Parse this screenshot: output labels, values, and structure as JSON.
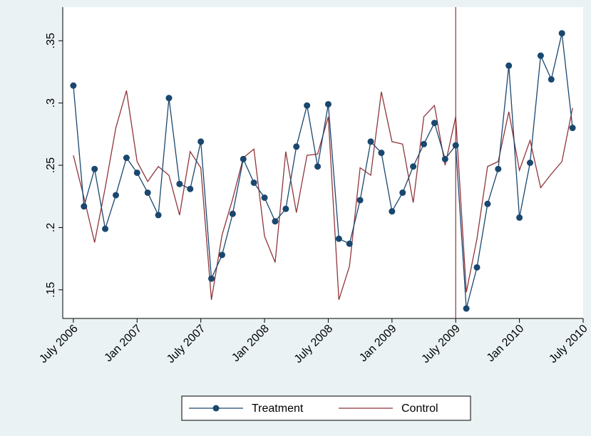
{
  "chart_data": {
    "type": "line",
    "x": [
      "2006-07",
      "2006-08",
      "2006-09",
      "2006-10",
      "2006-11",
      "2006-12",
      "2007-01",
      "2007-02",
      "2007-03",
      "2007-04",
      "2007-05",
      "2007-06",
      "2007-07",
      "2007-08",
      "2007-09",
      "2007-10",
      "2007-11",
      "2007-12",
      "2008-01",
      "2008-02",
      "2008-03",
      "2008-04",
      "2008-05",
      "2008-06",
      "2008-07",
      "2008-08",
      "2008-09",
      "2008-10",
      "2008-11",
      "2008-12",
      "2009-01",
      "2009-02",
      "2009-03",
      "2009-04",
      "2009-05",
      "2009-06",
      "2009-07",
      "2009-08",
      "2009-09",
      "2009-10",
      "2009-11",
      "2009-12",
      "2010-01",
      "2010-02",
      "2010-03",
      "2010-04",
      "2010-05",
      "2010-06"
    ],
    "series": [
      {
        "name": "Treatment",
        "color": "#1a476f",
        "marker": "circle",
        "values": [
          0.314,
          0.217,
          0.247,
          0.199,
          0.226,
          0.256,
          0.244,
          0.228,
          0.21,
          0.304,
          0.235,
          0.231,
          0.269,
          0.159,
          0.178,
          0.211,
          0.255,
          0.236,
          0.224,
          0.205,
          0.215,
          0.265,
          0.298,
          0.249,
          0.299,
          0.191,
          0.187,
          0.222,
          0.269,
          0.26,
          0.213,
          0.228,
          0.249,
          0.267,
          0.284,
          0.255,
          0.266,
          0.135,
          0.168,
          0.219,
          0.247,
          0.33,
          0.208,
          0.252,
          0.338,
          0.319,
          0.356,
          0.28
        ]
      },
      {
        "name": "Control",
        "color": "#90353b",
        "values": [
          0.258,
          0.224,
          0.188,
          0.232,
          0.28,
          0.31,
          0.253,
          0.237,
          0.249,
          0.242,
          0.21,
          0.261,
          0.248,
          0.142,
          0.194,
          0.223,
          0.256,
          0.263,
          0.193,
          0.172,
          0.261,
          0.212,
          0.258,
          0.259,
          0.289,
          0.142,
          0.169,
          0.248,
          0.242,
          0.309,
          0.269,
          0.267,
          0.22,
          0.289,
          0.298,
          0.25,
          0.289,
          0.148,
          0.191,
          0.249,
          0.253,
          0.293,
          0.246,
          0.27,
          0.232,
          0.243,
          0.253,
          0.296
        ]
      }
    ],
    "xlim": [
      "2006-06",
      "2010-07"
    ],
    "xticks": [
      {
        "value": "2006-07",
        "label": "July 2006"
      },
      {
        "value": "2007-01",
        "label": "Jan 2007"
      },
      {
        "value": "2007-07",
        "label": "July 2007"
      },
      {
        "value": "2008-01",
        "label": "Jan 2008"
      },
      {
        "value": "2008-07",
        "label": "July 2008"
      },
      {
        "value": "2009-01",
        "label": "Jan 2009"
      },
      {
        "value": "2009-07",
        "label": "July 2009"
      },
      {
        "value": "2010-01",
        "label": "Jan 2010"
      },
      {
        "value": "2010-07",
        "label": "July 2010"
      }
    ],
    "ylim": [
      0.127,
      0.377
    ],
    "yticks": [
      {
        "value": 0.15,
        "label": ".15"
      },
      {
        "value": 0.2,
        "label": ".2"
      },
      {
        "value": 0.25,
        "label": ".25"
      },
      {
        "value": 0.3,
        "label": ".3"
      },
      {
        "value": 0.35,
        "label": ".35"
      }
    ],
    "vline": {
      "x": "2009-07",
      "color": "#90353b"
    },
    "legend": "bottom"
  }
}
